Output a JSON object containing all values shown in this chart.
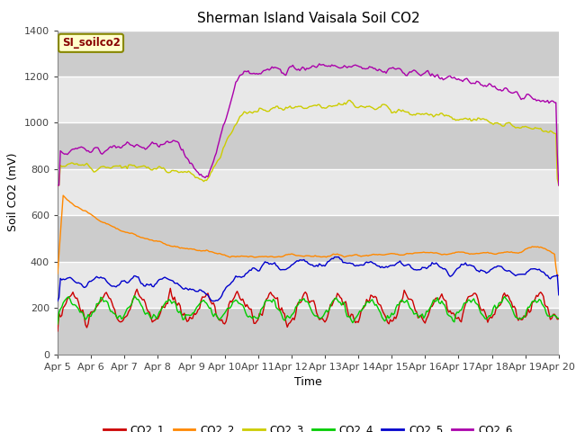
{
  "title": "Sherman Island Vaisala Soil CO2",
  "xlabel": "Time",
  "ylabel": "Soil CO2 (mV)",
  "legend_label": "SI_soilco2",
  "ylim": [
    0,
    1400
  ],
  "xlim": [
    0,
    360
  ],
  "x_tick_labels": [
    "Apr 5",
    "Apr 6",
    "Apr 7",
    "Apr 8",
    "Apr 9",
    "Apr 10",
    "Apr 11",
    "Apr 12",
    "Apr 13",
    "Apr 14",
    "Apr 15",
    "Apr 16",
    "Apr 17",
    "Apr 18",
    "Apr 19",
    "Apr 20"
  ],
  "x_tick_positions": [
    0,
    24,
    48,
    72,
    96,
    120,
    144,
    168,
    192,
    216,
    240,
    264,
    288,
    312,
    336,
    360
  ],
  "colors": {
    "CO2_1": "#cc0000",
    "CO2_2": "#ff8800",
    "CO2_3": "#cccc00",
    "CO2_4": "#00cc00",
    "CO2_5": "#0000cc",
    "CO2_6": "#aa00aa"
  },
  "series_names": [
    "CO2_1",
    "CO2_2",
    "CO2_3",
    "CO2_4",
    "CO2_5",
    "CO2_6"
  ],
  "background_color": "#ffffff",
  "plot_bg_color": "#e8e8e8",
  "title_fontsize": 11,
  "axis_fontsize": 9,
  "tick_fontsize": 8
}
